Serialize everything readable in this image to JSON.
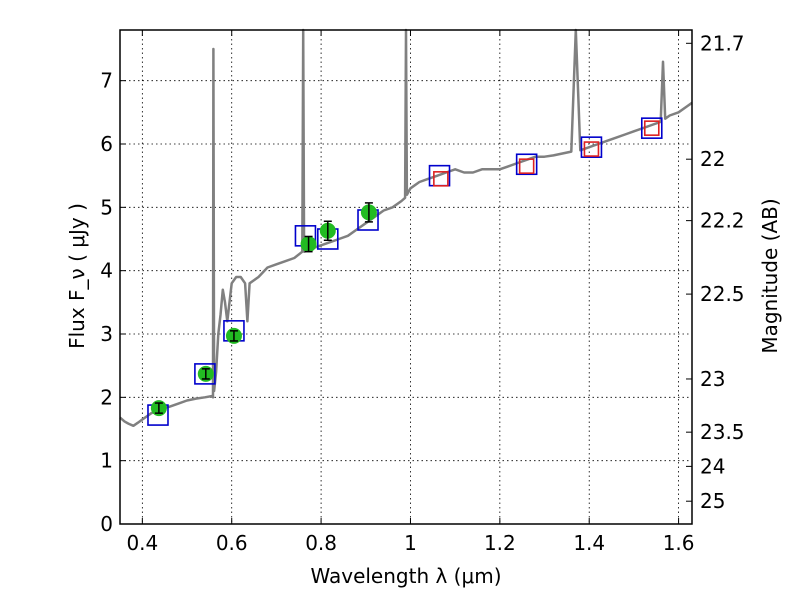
{
  "chart_data": {
    "type": "scatter",
    "xlabel": "Wavelength  λ (μm)",
    "ylabel_left": "Flux  F_ν  ( μJy )",
    "ylabel_right": "Magnitude (AB)",
    "xlim": [
      0.35,
      1.63
    ],
    "ylim": [
      0,
      7.8
    ],
    "grid": true,
    "x_ticks": [
      {
        "value": 0.4,
        "label": "0.4"
      },
      {
        "value": 0.6,
        "label": "0.6"
      },
      {
        "value": 0.8,
        "label": "0.8"
      },
      {
        "value": 1.0,
        "label": "1"
      },
      {
        "value": 1.2,
        "label": "1.2"
      },
      {
        "value": 1.4,
        "label": "1.4"
      },
      {
        "value": 1.6,
        "label": "1.6"
      }
    ],
    "y_ticks": [
      {
        "value": 0,
        "label": "0"
      },
      {
        "value": 1,
        "label": "1"
      },
      {
        "value": 2,
        "label": "2"
      },
      {
        "value": 3,
        "label": "3"
      },
      {
        "value": 4,
        "label": "4"
      },
      {
        "value": 5,
        "label": "5"
      },
      {
        "value": 6,
        "label": "6"
      },
      {
        "value": 7,
        "label": "7"
      }
    ],
    "right_ticks": [
      {
        "flux": 7.59,
        "label": "21.7"
      },
      {
        "flux": 5.76,
        "label": "22"
      },
      {
        "flux": 4.79,
        "label": "22.2"
      },
      {
        "flux": 3.63,
        "label": "22.5"
      },
      {
        "flux": 2.29,
        "label": "23"
      },
      {
        "flux": 1.45,
        "label": "23.5"
      },
      {
        "flux": 0.91,
        "label": "24"
      },
      {
        "flux": 0.36,
        "label": "25"
      }
    ],
    "series": [
      {
        "name": "model_spectrum",
        "style": "line",
        "color": "#808080",
        "points": [
          [
            0.35,
            1.68
          ],
          [
            0.36,
            1.62
          ],
          [
            0.37,
            1.58
          ],
          [
            0.38,
            1.55
          ],
          [
            0.39,
            1.6
          ],
          [
            0.4,
            1.65
          ],
          [
            0.42,
            1.75
          ],
          [
            0.44,
            1.82
          ],
          [
            0.46,
            1.85
          ],
          [
            0.48,
            1.9
          ],
          [
            0.5,
            1.95
          ],
          [
            0.52,
            1.98
          ],
          [
            0.54,
            2.0
          ],
          [
            0.555,
            2.02
          ],
          [
            0.558,
            2.0
          ],
          [
            0.559,
            7.5
          ],
          [
            0.5605,
            2.1
          ],
          [
            0.565,
            2.4
          ],
          [
            0.57,
            3.0
          ],
          [
            0.575,
            3.3
          ],
          [
            0.58,
            3.7
          ],
          [
            0.585,
            3.5
          ],
          [
            0.59,
            3.2
          ],
          [
            0.595,
            3.5
          ],
          [
            0.6,
            3.8
          ],
          [
            0.61,
            3.9
          ],
          [
            0.62,
            3.9
          ],
          [
            0.63,
            3.8
          ],
          [
            0.635,
            3.2
          ],
          [
            0.64,
            3.8
          ],
          [
            0.66,
            3.9
          ],
          [
            0.68,
            4.05
          ],
          [
            0.7,
            4.1
          ],
          [
            0.72,
            4.15
          ],
          [
            0.74,
            4.2
          ],
          [
            0.758,
            4.3
          ],
          [
            0.76,
            7.8
          ],
          [
            0.762,
            4.3
          ],
          [
            0.78,
            4.35
          ],
          [
            0.8,
            4.4
          ],
          [
            0.82,
            4.45
          ],
          [
            0.84,
            4.5
          ],
          [
            0.86,
            4.55
          ],
          [
            0.88,
            4.65
          ],
          [
            0.9,
            4.75
          ],
          [
            0.92,
            4.85
          ],
          [
            0.94,
            4.95
          ],
          [
            0.96,
            5.0
          ],
          [
            0.98,
            5.1
          ],
          [
            0.988,
            5.15
          ],
          [
            0.99,
            7.8
          ],
          [
            0.992,
            5.2
          ],
          [
            1.0,
            5.3
          ],
          [
            1.02,
            5.4
          ],
          [
            1.04,
            5.45
          ],
          [
            1.06,
            5.5
          ],
          [
            1.08,
            5.55
          ],
          [
            1.1,
            5.6
          ],
          [
            1.12,
            5.55
          ],
          [
            1.14,
            5.55
          ],
          [
            1.16,
            5.6
          ],
          [
            1.18,
            5.6
          ],
          [
            1.2,
            5.6
          ],
          [
            1.22,
            5.65
          ],
          [
            1.24,
            5.7
          ],
          [
            1.26,
            5.75
          ],
          [
            1.28,
            5.8
          ],
          [
            1.3,
            5.8
          ],
          [
            1.32,
            5.82
          ],
          [
            1.34,
            5.85
          ],
          [
            1.36,
            5.88
          ],
          [
            1.37,
            7.8
          ],
          [
            1.38,
            5.9
          ],
          [
            1.4,
            5.95
          ],
          [
            1.42,
            6.0
          ],
          [
            1.44,
            6.05
          ],
          [
            1.46,
            6.1
          ],
          [
            1.48,
            6.15
          ],
          [
            1.5,
            6.2
          ],
          [
            1.52,
            6.25
          ],
          [
            1.54,
            6.3
          ],
          [
            1.56,
            6.35
          ],
          [
            1.565,
            7.3
          ],
          [
            1.57,
            6.4
          ],
          [
            1.58,
            6.45
          ],
          [
            1.6,
            6.5
          ],
          [
            1.62,
            6.6
          ],
          [
            1.63,
            6.65
          ]
        ]
      },
      {
        "name": "model_photometry_blue_squares",
        "style": "open_square",
        "color": "#0000cc",
        "points": [
          [
            0.435,
            1.72
          ],
          [
            0.54,
            2.37
          ],
          [
            0.605,
            3.05
          ],
          [
            0.765,
            4.55
          ],
          [
            0.815,
            4.5
          ],
          [
            0.905,
            4.8
          ],
          [
            1.065,
            5.5
          ],
          [
            1.26,
            5.68
          ],
          [
            1.405,
            5.95
          ],
          [
            1.54,
            6.25
          ]
        ]
      },
      {
        "name": "observed_optical_green_points",
        "style": "filled_circle_errorbar",
        "color": "#22bb22",
        "points": [
          [
            0.437,
            1.83,
            0.08
          ],
          [
            0.542,
            2.37,
            0.08
          ],
          [
            0.605,
            2.97,
            0.08
          ],
          [
            0.772,
            4.42,
            0.12
          ],
          [
            0.815,
            4.63,
            0.15
          ],
          [
            0.907,
            4.92,
            0.15
          ]
        ]
      },
      {
        "name": "observed_nir_red_squares",
        "style": "open_square",
        "color": "#dd2222",
        "points": [
          [
            1.068,
            5.45
          ],
          [
            1.26,
            5.65
          ],
          [
            1.405,
            5.92
          ],
          [
            1.54,
            6.25
          ]
        ]
      }
    ]
  }
}
